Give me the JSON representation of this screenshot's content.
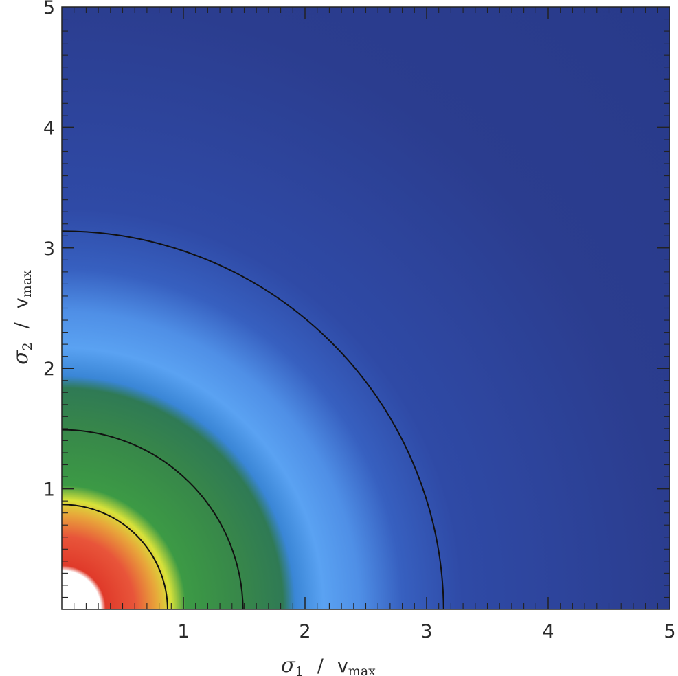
{
  "chart_data": {
    "type": "heatmap",
    "title": "",
    "xlabel": {
      "symbol": "σ",
      "subscript": "1",
      "separator": "/",
      "unit_base": "v",
      "unit_sub": "max"
    },
    "ylabel": {
      "symbol": "σ",
      "subscript": "2",
      "separator": "/",
      "unit_base": "v",
      "unit_sub": "max"
    },
    "xlim": [
      0.0,
      5.0
    ],
    "ylim": [
      0.0,
      5.0
    ],
    "x_ticks": [
      "1",
      "2",
      "3",
      "4",
      "5"
    ],
    "y_ticks": [
      "1",
      "2",
      "3",
      "4",
      "5"
    ],
    "x_tick_values": [
      1,
      2,
      3,
      4,
      5
    ],
    "y_tick_values": [
      1,
      2,
      3,
      4,
      5
    ],
    "minor_tick_step": 0.1,
    "surface": {
      "form": "radially symmetric in sqrt(σ1² + σ2²)",
      "color_stops": [
        {
          "r": 0.0,
          "color": "#ffffff"
        },
        {
          "r": 0.32,
          "color": "#ffffff"
        },
        {
          "r": 0.36,
          "color": "#e03a2a"
        },
        {
          "r": 0.6,
          "color": "#e8553a"
        },
        {
          "r": 0.78,
          "color": "#e8a63a"
        },
        {
          "r": 0.9,
          "color": "#d8e23a"
        },
        {
          "r": 1.02,
          "color": "#3c9a45"
        },
        {
          "r": 1.5,
          "color": "#37864a"
        },
        {
          "r": 1.82,
          "color": "#2f7a55"
        },
        {
          "r": 1.92,
          "color": "#3a86d6"
        },
        {
          "r": 2.15,
          "color": "#5aa2f2"
        },
        {
          "r": 2.45,
          "color": "#4f8fe6"
        },
        {
          "r": 2.8,
          "color": "#3760c0"
        },
        {
          "r": 3.3,
          "color": "#2f4aa6"
        },
        {
          "r": 5.0,
          "color": "#2b3d8f"
        },
        {
          "r": 7.1,
          "color": "#283a8a"
        }
      ]
    },
    "contours": [
      {
        "radius": 0.87,
        "color": "#111111"
      },
      {
        "radius": 1.49,
        "color": "#111111"
      },
      {
        "radius": 3.14,
        "color": "#111111"
      }
    ],
    "grid": false,
    "legend": "none"
  }
}
